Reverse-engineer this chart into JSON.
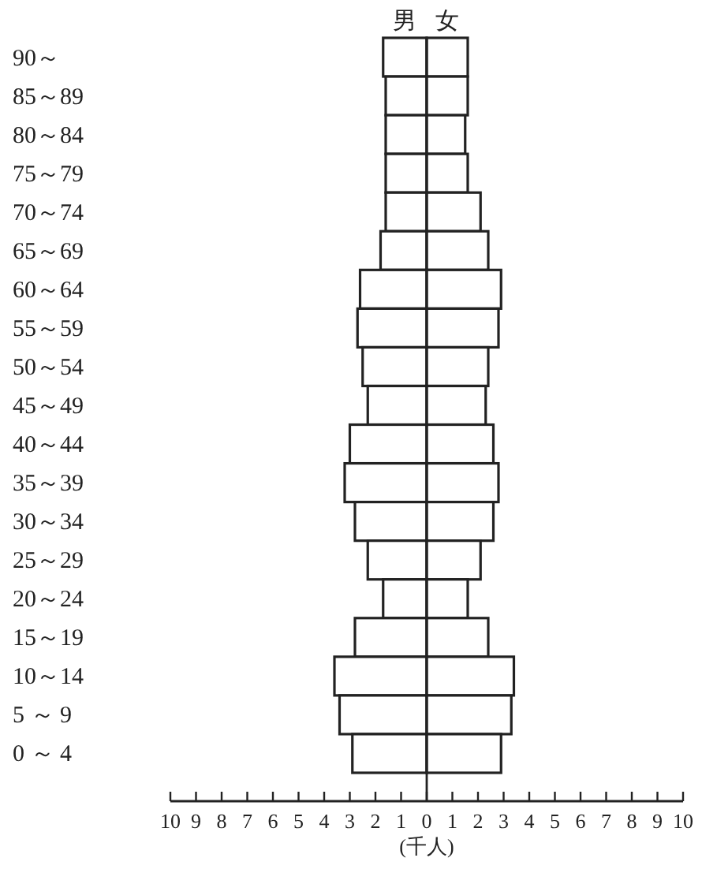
{
  "chart_data": {
    "type": "bar",
    "orientation": "horizontal",
    "stacked": true,
    "categories": [
      "90～",
      "85～89",
      "80～84",
      "75～79",
      "70～74",
      "65～69",
      "60～64",
      "55～59",
      "50～54",
      "45～49",
      "40～44",
      "35～39",
      "30～34",
      "25～29",
      "20～24",
      "15～19",
      "10～14",
      "5 ～ 9",
      "0 ～ 4"
    ],
    "series": [
      {
        "name": "男",
        "color": "#ffffff",
        "values": [
          -1.7,
          -1.6,
          -1.6,
          -1.6,
          -1.6,
          -1.8,
          -2.6,
          -2.7,
          -2.5,
          -2.3,
          -3.0,
          -3.2,
          -2.8,
          -2.3,
          -1.7,
          -2.8,
          -3.6,
          -3.4,
          -2.9
        ]
      },
      {
        "name": "女",
        "color": "#ffffff",
        "values": [
          1.6,
          1.6,
          1.5,
          1.6,
          2.1,
          2.4,
          2.9,
          2.8,
          2.4,
          2.3,
          2.6,
          2.8,
          2.6,
          2.1,
          1.6,
          2.4,
          3.4,
          3.3,
          2.9
        ]
      }
    ],
    "xlabel": "(千人)",
    "xlim": [
      -10,
      10
    ],
    "xticks": [
      {
        "value": -10,
        "label": "10"
      },
      {
        "value": -9,
        "label": "9"
      },
      {
        "value": -8,
        "label": "8"
      },
      {
        "value": -7,
        "label": "7"
      },
      {
        "value": -6,
        "label": "6"
      },
      {
        "value": -5,
        "label": "5"
      },
      {
        "value": -4,
        "label": "4"
      },
      {
        "value": -3,
        "label": "3"
      },
      {
        "value": -2,
        "label": "2"
      },
      {
        "value": -1,
        "label": "1"
      },
      0,
      1,
      2,
      3,
      4,
      5,
      6,
      7,
      8,
      9,
      10
    ],
    "tick_labels": "x"
  }
}
